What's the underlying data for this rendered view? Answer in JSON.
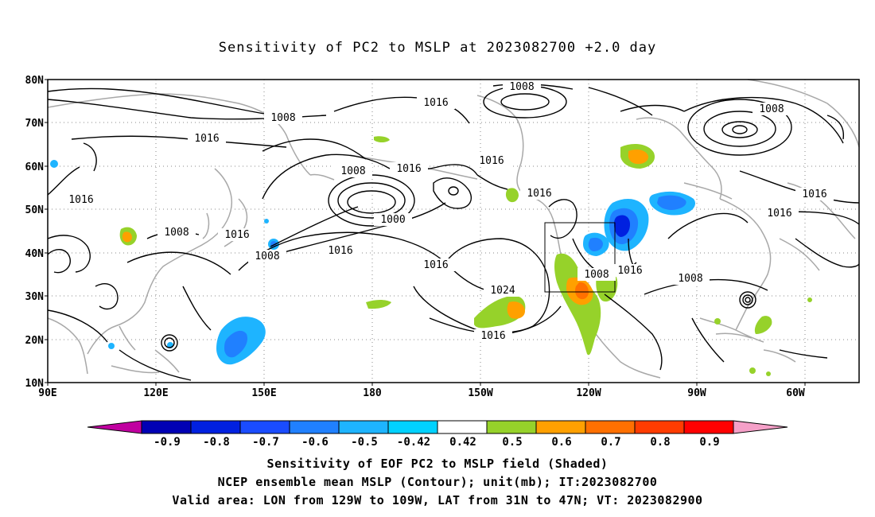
{
  "title": "Sensitivity of PC2 to MSLP at 2023082700 +2.0 day",
  "lat_labels": [
    "80N",
    "70N",
    "60N",
    "50N",
    "40N",
    "30N",
    "20N",
    "10N"
  ],
  "lon_labels": [
    "90E",
    "120E",
    "150E",
    "180",
    "150W",
    "120W",
    "90W",
    "60W"
  ],
  "contour_labels": [
    "1008",
    "1016",
    "1008",
    "1016",
    "1016",
    "1016",
    "1008",
    "1000",
    "1016",
    "1016",
    "1016",
    "1016",
    "1016",
    "1008",
    "1008",
    "1016",
    "1016",
    "1024",
    "1008",
    "1016",
    "1008",
    "1016",
    "1008",
    "1016",
    "1008"
  ],
  "colorbar": {
    "labels": [
      "-0.9",
      "-0.8",
      "-0.7",
      "-0.6",
      "-0.5",
      "-0.42",
      "0.42",
      "0.5",
      "0.6",
      "0.7",
      "0.8",
      "0.9"
    ],
    "colors": [
      "#c000a0",
      "#0000b4",
      "#0020e0",
      "#1a4cff",
      "#2080ff",
      "#1eb4ff",
      "#00d2ff",
      "#ffffff",
      "#96d22a",
      "#ffa000",
      "#ff7000",
      "#ff3c00",
      "#ff0000",
      "#f5a0c8"
    ]
  },
  "valid_box": {
    "lon_range": "129W to 109W",
    "lat_range": "31N to 47N"
  },
  "captions": [
    "Sensitivity of EOF PC2 to MSLP field (Shaded)",
    "NCEP ensemble mean MSLP (Contour); unit(mb); IT:2023082700",
    "Valid area: LON from 129W to 109W, LAT from 31N to 47N; VT: 2023082900"
  ]
}
